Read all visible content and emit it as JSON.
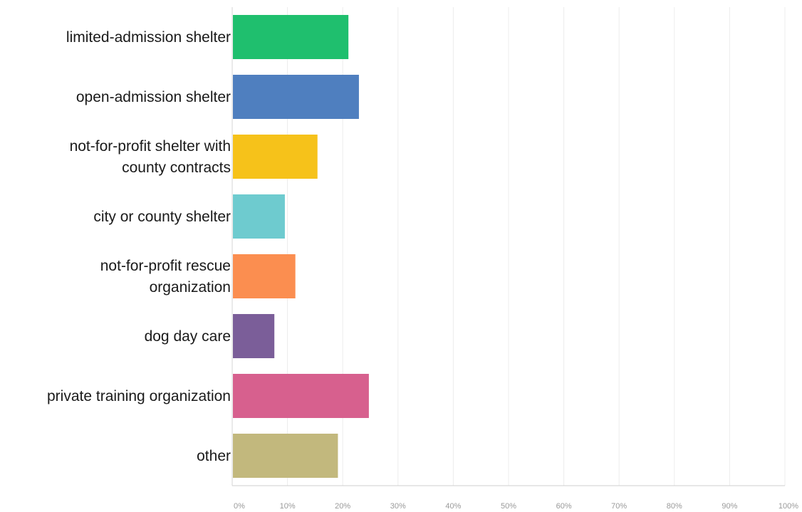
{
  "chart_data": {
    "type": "bar",
    "orientation": "horizontal",
    "categories": [
      [
        "limited-admission shelter"
      ],
      [
        "open-admission shelter"
      ],
      [
        "not-for-profit shelter with",
        "county contracts"
      ],
      [
        "city or county shelter"
      ],
      [
        "not-for-profit rescue",
        "organization"
      ],
      [
        "dog day care"
      ],
      [
        "private training organization"
      ],
      [
        "other"
      ]
    ],
    "values": [
      20.9,
      22.8,
      15.3,
      9.4,
      11.3,
      7.5,
      24.6,
      19.0
    ],
    "colors": [
      "#1fbf6e",
      "#4f7fbf",
      "#f6c21a",
      "#6ecbcf",
      "#fb8e50",
      "#7b5e99",
      "#d7608e",
      "#c2b87d"
    ],
    "xlim": [
      0,
      100
    ],
    "xticks": [
      "0%",
      "10%",
      "20%",
      "30%",
      "40%",
      "50%",
      "60%",
      "70%",
      "80%",
      "90%",
      "100%"
    ],
    "grid": true,
    "title": "",
    "xlabel": "",
    "ylabel": ""
  }
}
